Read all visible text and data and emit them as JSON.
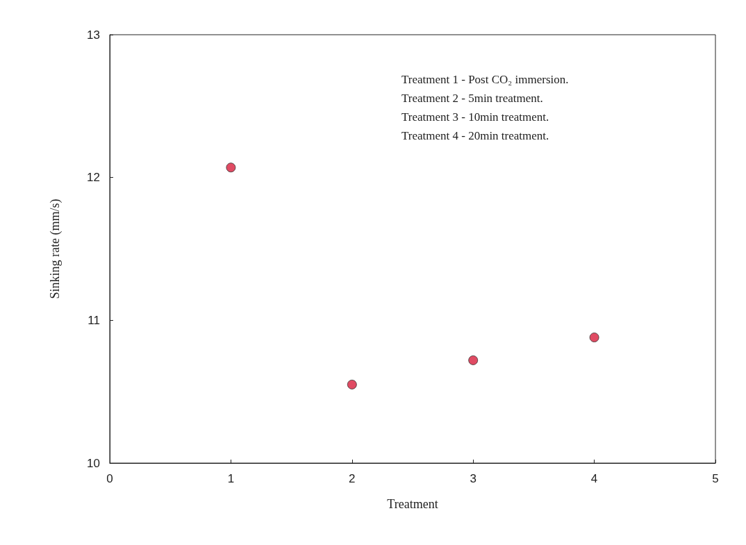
{
  "chart_data": {
    "type": "scatter",
    "xlabel": "Treatment",
    "ylabel": "Sinking rate (mm/s)",
    "x": [
      1,
      2,
      3,
      4
    ],
    "values": [
      12.07,
      10.55,
      10.72,
      10.88
    ],
    "color": "#d81e3c",
    "marker": "circle",
    "xlim": [
      0,
      5
    ],
    "xticks": [
      0,
      1,
      2,
      3,
      4,
      5
    ],
    "ylim": [
      10,
      13
    ],
    "yticks": [
      10,
      11,
      12,
      13
    ],
    "grid": false,
    "annotations": [
      "Treatment 1 - Post CO₂ immersion.",
      "Treatment 2 - 5min treatment.",
      "Treatment 3 - 10min treatment.",
      "Treatment 4 - 20min treatment."
    ]
  }
}
